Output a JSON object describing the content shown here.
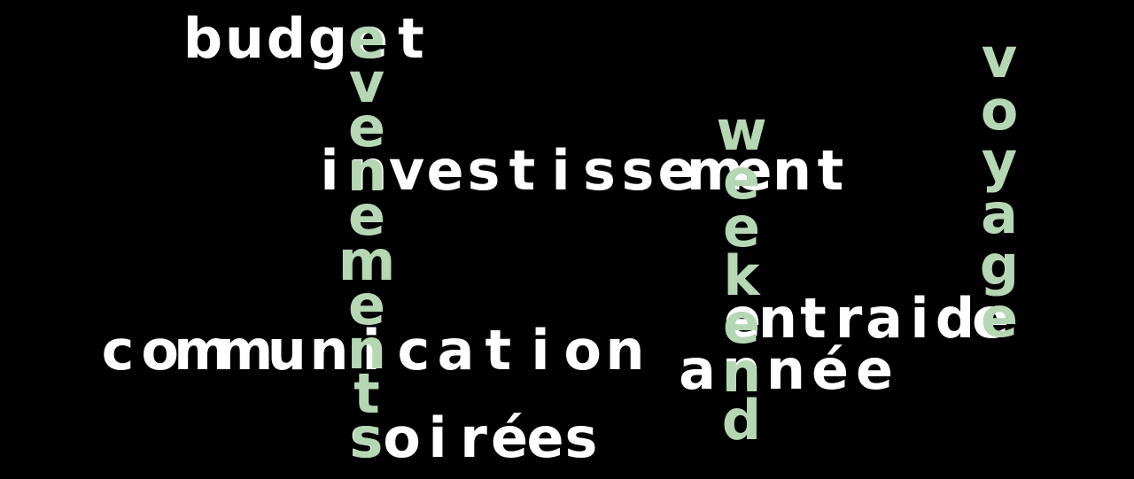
{
  "colors": {
    "background": "#000000",
    "horizontal_word": "#ffffff",
    "vertical_word": "#b6d7b4"
  },
  "words": [
    {
      "id": "budget",
      "text": "budget",
      "direction": "horizontal",
      "color": "white"
    },
    {
      "id": "investissement",
      "text": "investissement",
      "direction": "horizontal",
      "color": "white"
    },
    {
      "id": "communication",
      "text": "communication",
      "direction": "horizontal",
      "color": "white"
    },
    {
      "id": "soirees",
      "text": "soirées",
      "direction": "horizontal",
      "color": "white"
    },
    {
      "id": "entraide",
      "text": "entraide",
      "direction": "horizontal",
      "color": "white"
    },
    {
      "id": "annee",
      "text": "année",
      "direction": "horizontal",
      "color": "white"
    },
    {
      "id": "evenements",
      "text": "evenements",
      "direction": "vertical",
      "color": "green"
    },
    {
      "id": "weekend",
      "text": "weekend",
      "direction": "vertical",
      "color": "green"
    },
    {
      "id": "voyage",
      "text": "voyage",
      "direction": "vertical",
      "color": "green"
    }
  ]
}
